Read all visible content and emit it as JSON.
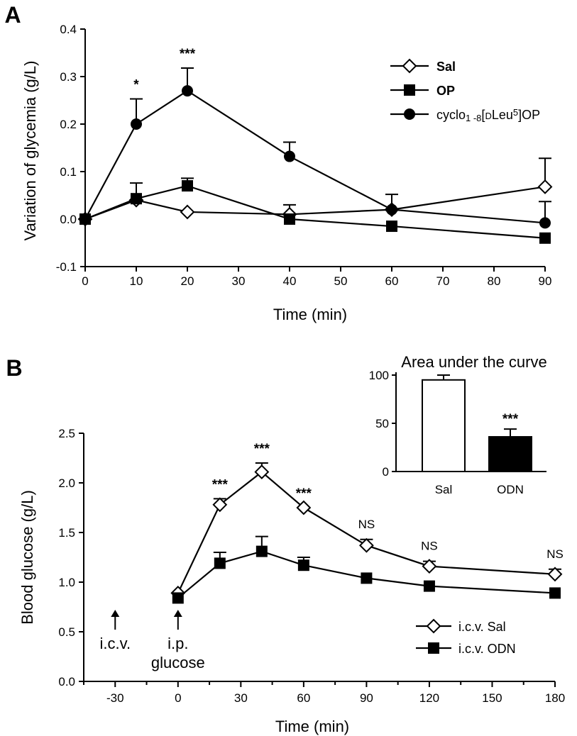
{
  "chart_data": [
    {
      "panel": "A",
      "type": "line",
      "xlabel": "Time (min)",
      "ylabel": "Variation of glycemia (g/L)",
      "xticks": [
        0,
        10,
        20,
        30,
        40,
        50,
        60,
        70,
        80,
        90
      ],
      "yticks": [
        -0.1,
        0.0,
        0.1,
        0.2,
        0.3,
        0.4
      ],
      "ytick_labels": [
        "-0.1",
        "0.0",
        "0.1",
        "0.2",
        "0.3",
        "0.4"
      ],
      "xlim": [
        0,
        90
      ],
      "ylim": [
        -0.1,
        0.4
      ],
      "series": [
        {
          "name": "Sal",
          "marker": "diamond-open",
          "x": [
            0,
            10,
            20,
            40,
            60,
            90
          ],
          "values": [
            0.0,
            0.04,
            0.015,
            0.01,
            0.02,
            0.068
          ],
          "err": [
            0,
            0.0,
            0.0,
            0.0,
            0.0,
            0.06
          ]
        },
        {
          "name": "OP",
          "marker": "square-filled",
          "x": [
            0,
            10,
            20,
            40,
            60,
            90
          ],
          "values": [
            0.0,
            0.043,
            0.07,
            0.0,
            -0.015,
            -0.04
          ],
          "err": [
            0,
            0.033,
            0.016,
            0.03,
            0.0,
            0.0
          ]
        },
        {
          "name": "cyclo1-8[DLeu5]OP",
          "marker": "circle-filled",
          "x": [
            0,
            10,
            20,
            40,
            60,
            90
          ],
          "values": [
            0.0,
            0.2,
            0.27,
            0.132,
            0.02,
            -0.008
          ],
          "err": [
            0,
            0.053,
            0.048,
            0.03,
            0.032,
            0.045
          ]
        }
      ],
      "legend": [
        {
          "main": "Sal",
          "bold": true
        },
        {
          "main": "OP",
          "bold": true
        },
        {
          "main": "cyclo",
          "sub": "1 -8",
          "mid": "[",
          "small": "D",
          "rest": "Leu",
          "sup": "5",
          "tail": "]OP",
          "bold": false
        }
      ],
      "annotations": [
        {
          "x": 10,
          "text": "*"
        },
        {
          "x": 20,
          "text": "***"
        }
      ]
    },
    {
      "panel": "B",
      "type": "line",
      "xlabel": "Time (min)",
      "ylabel": "Blood glucose (g/L)",
      "xticks": [
        -30,
        0,
        30,
        60,
        90,
        120,
        150,
        180
      ],
      "yticks": [
        0.0,
        0.5,
        1.0,
        1.5,
        2.0,
        2.5
      ],
      "ytick_labels": [
        "0.0",
        "0.5",
        "1.0",
        "1.5",
        "2.0",
        "2.5"
      ],
      "xlim": [
        -45,
        180
      ],
      "ylim": [
        0,
        2.5
      ],
      "series": [
        {
          "name": "i.c.v. Sal",
          "marker": "diamond-open",
          "x": [
            0,
            20,
            40,
            60,
            90,
            120,
            180
          ],
          "values": [
            0.89,
            1.78,
            2.11,
            1.75,
            1.37,
            1.16,
            1.08
          ],
          "err": [
            0,
            0.06,
            0.09,
            0.0,
            0.06,
            0.05,
            0.05
          ]
        },
        {
          "name": "i.c.v. ODN",
          "marker": "square-filled",
          "x": [
            0,
            20,
            40,
            60,
            90,
            120,
            180
          ],
          "values": [
            0.84,
            1.19,
            1.31,
            1.17,
            1.04,
            0.96,
            0.89
          ],
          "err": [
            0,
            0.11,
            0.15,
            0.08,
            0.0,
            0.0,
            0.0
          ]
        }
      ],
      "annotations": [
        {
          "x": 20,
          "text": "***"
        },
        {
          "x": 40,
          "text": "***"
        },
        {
          "x": 60,
          "text": "***"
        },
        {
          "x": 90,
          "text": "NS"
        },
        {
          "x": 120,
          "text": "NS"
        },
        {
          "x": 180,
          "text": "NS"
        }
      ],
      "arrows": [
        {
          "x": -30,
          "lines": [
            "i.c.v."
          ]
        },
        {
          "x": 0,
          "lines": [
            "i.p.",
            "glucose"
          ]
        }
      ],
      "inset": {
        "type": "bar",
        "title": "Area under the curve",
        "categories": [
          "Sal",
          "ODN"
        ],
        "values": [
          95,
          36
        ],
        "err": [
          5,
          8
        ],
        "fills": [
          "#ffffff",
          "#000000"
        ],
        "yticks": [
          0,
          50,
          100
        ],
        "ylim": [
          0,
          100
        ],
        "annotation": "***"
      }
    }
  ]
}
